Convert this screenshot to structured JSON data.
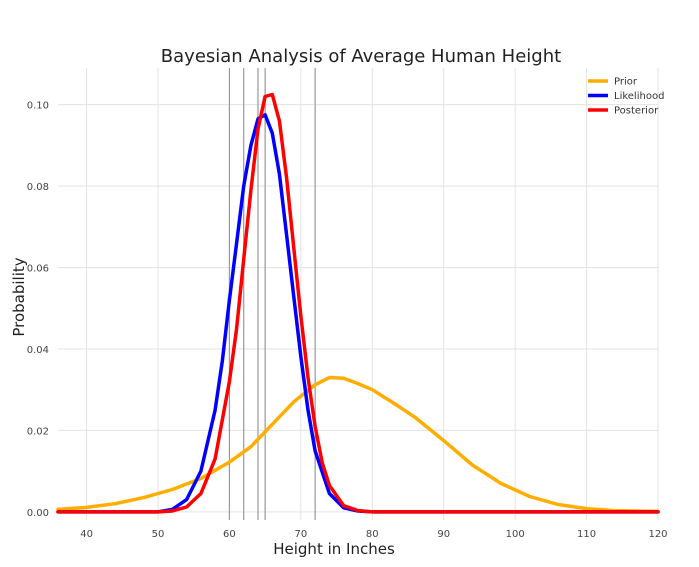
{
  "chart_data": {
    "type": "line",
    "title": "Bayesian Analysis of Average Human Height",
    "xlabel": "Height in Inches",
    "ylabel": "Probability",
    "xlim": [
      36,
      120
    ],
    "ylim": [
      -0.002,
      0.109
    ],
    "xticks": [
      40,
      50,
      60,
      70,
      80,
      90,
      100,
      110,
      120
    ],
    "yticks": [
      0.0,
      0.02,
      0.04,
      0.06,
      0.08,
      0.1
    ],
    "ytick_labels": [
      "0.00",
      "0.02",
      "0.04",
      "0.06",
      "0.08",
      "0.10"
    ],
    "grid": true,
    "legend_position": "top-right",
    "data_vlines": [
      60,
      62,
      64,
      65,
      72
    ],
    "series": [
      {
        "name": "Prior",
        "color": "#FFAE00",
        "x": [
          36,
          40,
          44,
          48,
          52,
          56,
          60,
          63,
          66,
          69,
          72,
          74,
          76,
          78,
          80,
          83,
          86,
          90,
          94,
          98,
          102,
          106,
          110,
          114,
          120
        ],
        "y": [
          0.0006,
          0.0011,
          0.002,
          0.0035,
          0.0055,
          0.0082,
          0.0122,
          0.016,
          0.0215,
          0.027,
          0.0312,
          0.033,
          0.0328,
          0.0315,
          0.03,
          0.0267,
          0.0232,
          0.0175,
          0.0115,
          0.007,
          0.0038,
          0.0018,
          0.0008,
          0.0003,
          0.0001
        ]
      },
      {
        "name": "Likelihood",
        "color": "#0000FF",
        "x": [
          36,
          50,
          52,
          54,
          56,
          58,
          59,
          60,
          61,
          62,
          63,
          64,
          65,
          66,
          67,
          68,
          69,
          70,
          71,
          72,
          74,
          76,
          78,
          80,
          120
        ],
        "y": [
          0.0,
          0.0,
          0.0006,
          0.003,
          0.01,
          0.025,
          0.037,
          0.052,
          0.066,
          0.08,
          0.09,
          0.0965,
          0.0975,
          0.093,
          0.083,
          0.068,
          0.053,
          0.038,
          0.025,
          0.015,
          0.0045,
          0.001,
          0.0002,
          0.0,
          0.0
        ]
      },
      {
        "name": "Posterior",
        "color": "#FF0000",
        "x": [
          36,
          50,
          52,
          54,
          56,
          58,
          60,
          61,
          62,
          63,
          64,
          65,
          66,
          67,
          68,
          69,
          70,
          71,
          72,
          73,
          74,
          76,
          78,
          80,
          120
        ],
        "y": [
          0.0,
          0.0,
          0.0002,
          0.0012,
          0.0045,
          0.013,
          0.032,
          0.045,
          0.062,
          0.079,
          0.094,
          0.102,
          0.1025,
          0.096,
          0.082,
          0.065,
          0.048,
          0.033,
          0.021,
          0.012,
          0.0065,
          0.0015,
          0.0003,
          0.0,
          0.0
        ]
      }
    ]
  }
}
